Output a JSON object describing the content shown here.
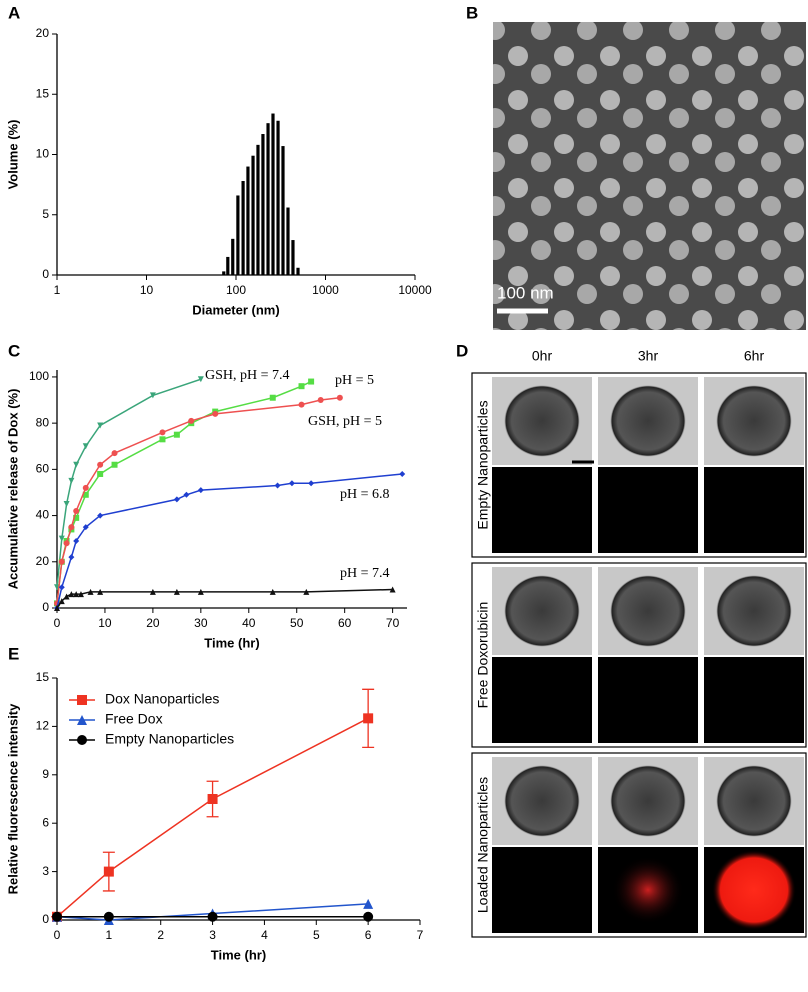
{
  "chart_data": [
    {
      "type": "bar",
      "panel_label": "A",
      "xlabel": "Diameter (nm)",
      "ylabel": "Volume (%)",
      "xlog": true,
      "x": [
        73,
        81,
        92,
        105,
        120,
        136,
        155,
        176,
        200,
        228,
        259,
        295,
        335,
        381,
        433,
        493
      ],
      "values": [
        0.3,
        1.5,
        3.0,
        6.6,
        7.8,
        9.0,
        9.9,
        10.8,
        11.7,
        12.6,
        13.4,
        12.8,
        10.7,
        5.6,
        2.9,
        0.6
      ],
      "color": "#000000",
      "xlim": [
        1,
        10000
      ],
      "xticks": [
        1,
        10,
        100,
        1000,
        10000
      ],
      "ylim": [
        0,
        20
      ],
      "yticks": [
        0,
        5,
        10,
        15,
        20
      ]
    },
    {
      "type": "line",
      "panel_label": "C",
      "xlabel": "Time (hr)",
      "ylabel": "Accumulative release of Dox (%)",
      "xlim": [
        0,
        73
      ],
      "xticks": [
        0,
        10,
        20,
        30,
        40,
        50,
        60,
        70
      ],
      "ylim": [
        0,
        103
      ],
      "yticks": [
        0,
        20,
        40,
        60,
        80,
        100
      ],
      "series": [
        {
          "name": "GSH, pH = 7.4",
          "color": "#3aa57a",
          "marker": "v",
          "x": [
            0,
            1,
            2,
            3,
            4,
            6,
            9,
            20,
            30
          ],
          "values": [
            9,
            30,
            45,
            55,
            62,
            70,
            79,
            92,
            99
          ]
        },
        {
          "name": "pH = 5",
          "color": "#55dd44",
          "marker": "s",
          "x": [
            0,
            1,
            2,
            3,
            4,
            6,
            9,
            12,
            22,
            25,
            28,
            33,
            45,
            51,
            53
          ],
          "values": [
            2,
            20,
            29,
            34,
            39,
            49,
            58,
            62,
            73,
            75,
            80,
            85,
            91,
            96,
            98
          ]
        },
        {
          "name": "GSH, pH = 5",
          "color": "#ee5050",
          "marker": "o",
          "x": [
            0,
            1,
            2,
            3,
            4,
            6,
            9,
            12,
            22,
            28,
            33,
            51,
            55,
            59
          ],
          "values": [
            2,
            20,
            28,
            35,
            42,
            52,
            62,
            67,
            76,
            81,
            84,
            88,
            90,
            91
          ]
        },
        {
          "name": "pH = 6.8",
          "color": "#1f3fd0",
          "marker": "D",
          "x": [
            0,
            1,
            3,
            4,
            6,
            9,
            25,
            27,
            30,
            46,
            49,
            53,
            72
          ],
          "values": [
            0,
            9,
            22,
            29,
            35,
            40,
            47,
            49,
            51,
            53,
            54,
            54,
            58
          ]
        },
        {
          "name": "pH = 7.4",
          "color": "#111111",
          "marker": "^",
          "x": [
            0,
            1,
            2,
            3,
            4,
            5,
            7,
            9,
            20,
            25,
            30,
            45,
            52,
            70
          ],
          "values": [
            0,
            3,
            5,
            6,
            6,
            6,
            7,
            7,
            7,
            7,
            7,
            7,
            7,
            8
          ]
        }
      ]
    },
    {
      "type": "line",
      "panel_label": "E",
      "xlabel": "Time (hr)",
      "ylabel": "Relative fluorescence intensity",
      "legend": "upper left",
      "xlim": [
        0,
        7
      ],
      "xticks": [
        0,
        1,
        2,
        3,
        4,
        5,
        6,
        7
      ],
      "ylim": [
        0,
        15
      ],
      "yticks": [
        0,
        3,
        6,
        9,
        12,
        15
      ],
      "series": [
        {
          "name": "Dox Nanoparticles",
          "color": "#ee3322",
          "marker": "s",
          "x": [
            0,
            1,
            3,
            6
          ],
          "values": [
            0.2,
            3.0,
            7.5,
            12.5
          ],
          "errors": [
            0,
            1.2,
            1.1,
            1.8
          ]
        },
        {
          "name": "Free Dox",
          "color": "#2255cc",
          "marker": "^",
          "x": [
            0,
            1,
            3,
            6
          ],
          "values": [
            0.2,
            0.0,
            0.4,
            1.0
          ]
        },
        {
          "name": "Empty Nanoparticles",
          "color": "#000000",
          "marker": "o",
          "x": [
            0,
            1,
            3,
            6
          ],
          "values": [
            0.2,
            0.2,
            0.2,
            0.2
          ]
        }
      ]
    }
  ],
  "images": {
    "B": {
      "panel_label": "B",
      "scale_bar": "100 nm"
    },
    "D": {
      "panel_label": "D",
      "columns": [
        "0hr",
        "3hr",
        "6hr"
      ],
      "rows": [
        "Empty Nanoparticles",
        "Free Doxorubicin",
        "Loaded Nanoparticles"
      ]
    }
  }
}
